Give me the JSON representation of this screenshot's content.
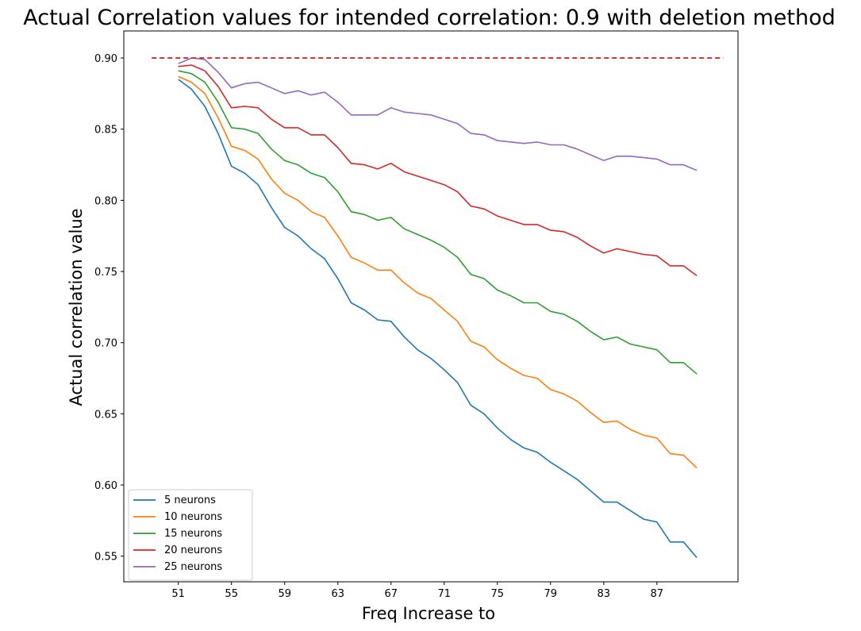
{
  "chart_data": {
    "type": "line",
    "title": "Actual Correlation values for intended correlation:  0.9 with deletion method",
    "xlabel": "Freq Increase to",
    "ylabel": "Actual correlation value",
    "xlim": [
      46.9,
      93.1
    ],
    "ylim": [
      0.532,
      0.919
    ],
    "xticks": [
      51,
      55,
      59,
      63,
      67,
      71,
      75,
      79,
      83,
      87
    ],
    "yticks": [
      0.55,
      0.6,
      0.65,
      0.7,
      0.75,
      0.8,
      0.85,
      0.9
    ],
    "ytick_labels": [
      "0.55",
      "0.60",
      "0.65",
      "0.70",
      "0.75",
      "0.80",
      "0.85",
      "0.90"
    ],
    "grid": false,
    "legend": "lower-left",
    "reference_line": {
      "y": 0.9,
      "x": [
        49,
        92
      ],
      "color": "#d62728",
      "style": "dashed"
    },
    "x": [
      51,
      52,
      53,
      54,
      55,
      56,
      57,
      58,
      59,
      60,
      61,
      62,
      63,
      64,
      65,
      66,
      67,
      68,
      69,
      70,
      71,
      72,
      73,
      74,
      75,
      76,
      77,
      78,
      79,
      80,
      81,
      82,
      83,
      84,
      85,
      86,
      87,
      88,
      89,
      90
    ],
    "series": [
      {
        "name": "5 neurons",
        "color": "#1f77b4",
        "values": [
          0.885,
          0.878,
          0.866,
          0.847,
          0.824,
          0.819,
          0.811,
          0.795,
          0.781,
          0.775,
          0.766,
          0.759,
          0.745,
          0.728,
          0.723,
          0.716,
          0.715,
          0.704,
          0.695,
          0.689,
          0.681,
          0.672,
          0.656,
          0.65,
          0.64,
          0.632,
          0.626,
          0.623,
          0.616,
          0.61,
          0.604,
          0.596,
          0.588,
          0.588,
          0.582,
          0.576,
          0.574,
          0.56,
          0.56,
          0.549
        ]
      },
      {
        "name": "10 neurons",
        "color": "#ff7f0e",
        "values": [
          0.887,
          0.883,
          0.875,
          0.858,
          0.838,
          0.835,
          0.829,
          0.815,
          0.805,
          0.8,
          0.792,
          0.788,
          0.775,
          0.76,
          0.756,
          0.751,
          0.751,
          0.742,
          0.735,
          0.731,
          0.723,
          0.715,
          0.701,
          0.697,
          0.688,
          0.682,
          0.677,
          0.675,
          0.667,
          0.664,
          0.659,
          0.651,
          0.644,
          0.645,
          0.639,
          0.635,
          0.633,
          0.622,
          0.621,
          0.612
        ]
      },
      {
        "name": "15 neurons",
        "color": "#2ca02c",
        "values": [
          0.891,
          0.889,
          0.883,
          0.869,
          0.851,
          0.85,
          0.847,
          0.836,
          0.828,
          0.825,
          0.819,
          0.816,
          0.806,
          0.792,
          0.79,
          0.786,
          0.788,
          0.78,
          0.776,
          0.772,
          0.767,
          0.76,
          0.748,
          0.745,
          0.737,
          0.733,
          0.728,
          0.728,
          0.722,
          0.72,
          0.715,
          0.708,
          0.702,
          0.704,
          0.699,
          0.697,
          0.695,
          0.686,
          0.686,
          0.678
        ]
      },
      {
        "name": "20 neurons",
        "color": "#d62728",
        "values": [
          0.894,
          0.895,
          0.891,
          0.88,
          0.865,
          0.866,
          0.865,
          0.857,
          0.851,
          0.851,
          0.846,
          0.846,
          0.837,
          0.826,
          0.825,
          0.822,
          0.826,
          0.82,
          0.817,
          0.814,
          0.811,
          0.806,
          0.796,
          0.794,
          0.789,
          0.786,
          0.783,
          0.783,
          0.779,
          0.778,
          0.774,
          0.768,
          0.763,
          0.766,
          0.764,
          0.762,
          0.761,
          0.754,
          0.754,
          0.747
        ]
      },
      {
        "name": "25 neurons",
        "color": "#9467bd",
        "values": [
          0.896,
          0.9,
          0.899,
          0.89,
          0.879,
          0.882,
          0.883,
          0.879,
          0.875,
          0.877,
          0.874,
          0.876,
          0.869,
          0.86,
          0.86,
          0.86,
          0.865,
          0.862,
          0.861,
          0.86,
          0.857,
          0.854,
          0.847,
          0.846,
          0.842,
          0.841,
          0.84,
          0.841,
          0.839,
          0.839,
          0.836,
          0.832,
          0.828,
          0.831,
          0.831,
          0.83,
          0.829,
          0.825,
          0.825,
          0.821
        ]
      }
    ]
  }
}
